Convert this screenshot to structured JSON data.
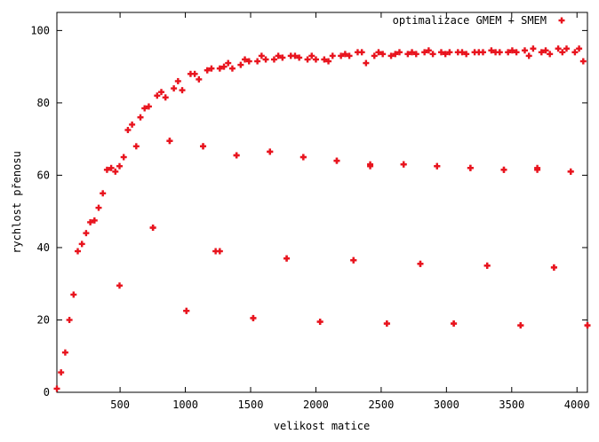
{
  "chart_data": {
    "type": "scatter",
    "xlabel": "velikost matice",
    "ylabel": "rychlost přenosu",
    "xlim": [
      16,
      4080
    ],
    "ylim": [
      0,
      105
    ],
    "xticks": [
      500,
      1000,
      1500,
      2000,
      2500,
      3000,
      3500,
      4000
    ],
    "yticks": [
      0,
      20,
      40,
      60,
      80,
      100
    ],
    "grid": false,
    "legend_position": "top-right",
    "series": [
      {
        "name": "optimalizace GMEM + SMEM",
        "color": "#e8141e",
        "marker": "plus",
        "x": [
          16,
          48,
          80,
          112,
          144,
          176,
          208,
          240,
          272,
          304,
          336,
          368,
          400,
          432,
          464,
          496,
          528,
          560,
          592,
          624,
          656,
          688,
          720,
          752,
          784,
          816,
          848,
          880,
          912,
          944,
          976,
          1008,
          1040,
          1072,
          1104,
          1136,
          1168,
          1200,
          1232,
          1264,
          1296,
          1328,
          1360,
          1392,
          1424,
          1456,
          1488,
          1520,
          1552,
          1584,
          1616,
          1648,
          1680,
          1712,
          1744,
          1776,
          1808,
          1840,
          1872,
          1904,
          1936,
          1968,
          2000,
          2032,
          2064,
          2096,
          2128,
          2160,
          2192,
          2224,
          2256,
          2288,
          2320,
          2352,
          2384,
          2416,
          2448,
          2480,
          2512,
          2544,
          2576,
          2608,
          2640,
          2672,
          2704,
          2736,
          2768,
          2800,
          2832,
          2864,
          2896,
          2928,
          2960,
          2992,
          3024,
          3056,
          3088,
          3120,
          3152,
          3184,
          3216,
          3248,
          3280,
          3312,
          3344,
          3376,
          3408,
          3440,
          3472,
          3504,
          3536,
          3568,
          3600,
          3632,
          3664,
          3696,
          3728,
          3760,
          3792,
          3824,
          3856,
          3888,
          3920,
          3952,
          3984,
          4016,
          4048,
          4080,
          496,
          752,
          880,
          1008,
          1136,
          1264,
          1392,
          1520,
          1648,
          1776,
          1904,
          2032,
          2160,
          2288,
          2416,
          2544,
          2672,
          2800,
          2928,
          3056,
          3184,
          3312,
          3440,
          3568,
          3696,
          3824,
          3952,
          4080
        ],
        "y": [
          1,
          5.5,
          11,
          20,
          27,
          39,
          41,
          44,
          47,
          47.5,
          51,
          55,
          61.5,
          62,
          61,
          62.5,
          65,
          72.5,
          74,
          68,
          76,
          78.5,
          79,
          45.5,
          82,
          83,
          81.5,
          69.5,
          84,
          86,
          83.5,
          22.5,
          88,
          88,
          86.5,
          68,
          89,
          89.5,
          39,
          89.5,
          90,
          91,
          89.5,
          65.5,
          90.5,
          92,
          91.5,
          20.5,
          91.5,
          93,
          92,
          66.5,
          92,
          93,
          92.5,
          37,
          93,
          93,
          92.5,
          65,
          92,
          93,
          92,
          19.5,
          92,
          91.5,
          93,
          64,
          93,
          93.5,
          93,
          36.5,
          94,
          94,
          91,
          63,
          93,
          94,
          93.5,
          19,
          93,
          93.5,
          94,
          63,
          93.5,
          94,
          93.5,
          35.5,
          94,
          94.5,
          93.5,
          62.5,
          94,
          93.5,
          94,
          19,
          94,
          94,
          93.5,
          62,
          94,
          94,
          94,
          35,
          94.5,
          94,
          94,
          61.5,
          94,
          94.5,
          94,
          18.5,
          94.5,
          93,
          95,
          62,
          94,
          94.5,
          93.5,
          34.5,
          95,
          94,
          95,
          61,
          94,
          95,
          91.5,
          18.5,
          29.5,
          45.5,
          69.5,
          22.5,
          68,
          39,
          65.5,
          20.5,
          66.5,
          37,
          65,
          19.5,
          64,
          36.5,
          62.5,
          19,
          63,
          35.5,
          62.5,
          19,
          62,
          35,
          61.5,
          18.5,
          61.5,
          34.5,
          61,
          18.5
        ]
      }
    ]
  }
}
